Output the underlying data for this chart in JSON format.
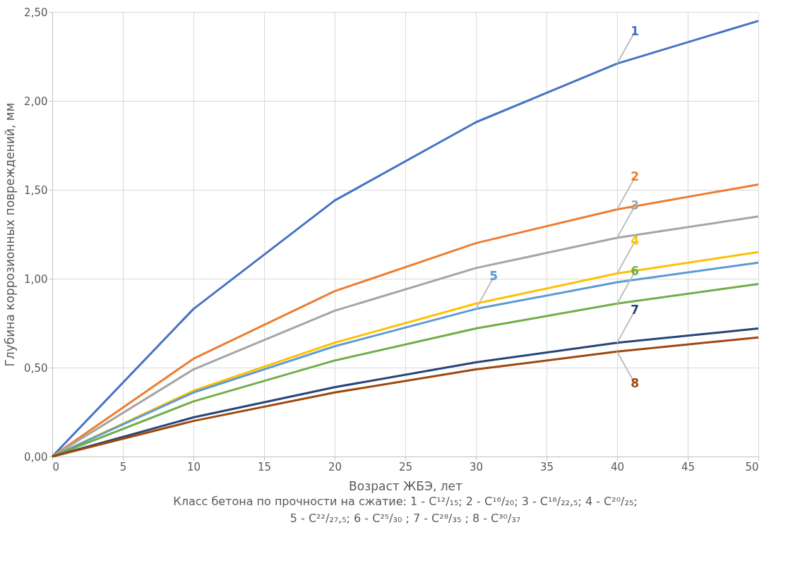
{
  "chart_data": {
    "type": "line",
    "xlabel": "Возраст ЖБЭ, лет",
    "ylabel": "Глубина коррозионных повреждений, мм",
    "x": [
      0,
      10,
      20,
      30,
      40,
      50
    ],
    "series": [
      {
        "name": "1",
        "color": "#4472c4",
        "values": [
          0,
          0.83,
          1.44,
          1.88,
          2.21,
          2.45
        ]
      },
      {
        "name": "2",
        "color": "#ed7d31",
        "values": [
          0,
          0.55,
          0.93,
          1.2,
          1.39,
          1.53
        ]
      },
      {
        "name": "3",
        "color": "#a5a5a5",
        "values": [
          0,
          0.49,
          0.82,
          1.06,
          1.23,
          1.35
        ]
      },
      {
        "name": "4",
        "color": "#ffc000",
        "values": [
          0,
          0.37,
          0.64,
          0.86,
          1.03,
          1.15
        ]
      },
      {
        "name": "5",
        "color": "#5b9bd5",
        "values": [
          0,
          0.36,
          0.62,
          0.83,
          0.98,
          1.09
        ]
      },
      {
        "name": "6",
        "color": "#70ad47",
        "values": [
          0,
          0.31,
          0.54,
          0.72,
          0.86,
          0.97
        ]
      },
      {
        "name": "7",
        "color": "#264478",
        "values": [
          0,
          0.22,
          0.39,
          0.53,
          0.64,
          0.72
        ]
      },
      {
        "name": "8",
        "color": "#9e480e",
        "values": [
          0,
          0.2,
          0.36,
          0.49,
          0.59,
          0.67
        ]
      }
    ],
    "xlim": [
      0,
      50
    ],
    "xticks": [
      0,
      5,
      10,
      15,
      20,
      25,
      30,
      35,
      40,
      45,
      50
    ],
    "ylim": [
      0,
      2.5
    ],
    "yticks": [
      {
        "value": 0,
        "label": "0,00"
      },
      {
        "value": 0.5,
        "label": "0,50"
      },
      {
        "value": 1,
        "label": "1,00"
      },
      {
        "value": 1.5,
        "label": "1,50"
      },
      {
        "value": 2,
        "label": "2,00"
      },
      {
        "value": 2.5,
        "label": "2,50"
      }
    ],
    "grid": true,
    "marker": "none",
    "line_style": "solid",
    "annotations": [
      "Класс бетона по прочности на сжатие: 1 - C¹²/₁₅; 2 - C¹⁶/₂₀; 3 - C¹⁸/₂₂,₅; 4 - C²⁰/₂₅;",
      "5 - C²²/₂₇,₅; 6 - C²⁵/₃₀ ; 7 - C²⁸/₃₅ ; 8 - C³⁰/₃₇"
    ]
  }
}
